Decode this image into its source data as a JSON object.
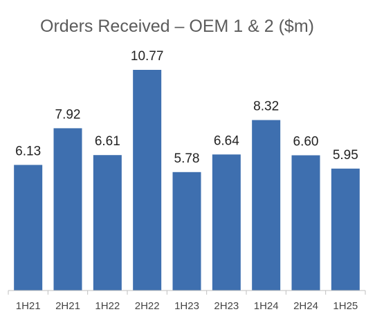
{
  "chart_data": {
    "type": "bar",
    "title": "Orders Received – OEM 1 & 2 ($m)",
    "categories": [
      "1H21",
      "2H21",
      "1H22",
      "2H22",
      "1H23",
      "2H23",
      "1H24",
      "2H24",
      "1H25"
    ],
    "values": [
      6.13,
      7.92,
      6.61,
      10.77,
      5.78,
      6.64,
      8.32,
      6.6,
      5.95
    ],
    "value_labels": [
      "6.13",
      "7.92",
      "6.61",
      "10.77",
      "5.78",
      "6.64",
      "8.32",
      "6.60",
      "5.95"
    ],
    "ylim": [
      0,
      10.77
    ],
    "grid": false,
    "legend": "none",
    "bar_color": "#3e6faf",
    "axis_color": "#bfbfbf"
  }
}
